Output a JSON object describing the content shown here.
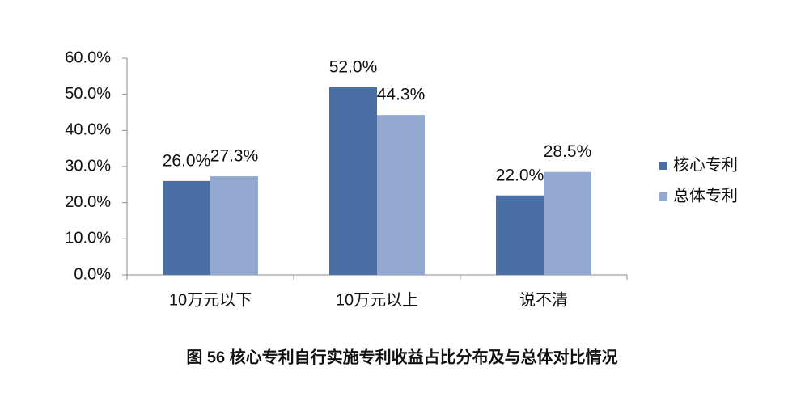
{
  "chart_data": {
    "type": "bar",
    "title": "图 56 核心专利自行实施专利收益占比分布及与总体对比情况",
    "categories": [
      "10万元以下",
      "10万元以上",
      "说不清"
    ],
    "series": [
      {
        "name": "核心专利",
        "color": "#4a6fa5",
        "values": [
          26.0,
          52.0,
          22.0
        ],
        "value_labels": [
          "26.0%",
          "52.0%",
          "22.0%"
        ]
      },
      {
        "name": "总体专利",
        "color": "#94a9d2",
        "values": [
          27.3,
          44.3,
          28.5
        ],
        "value_labels": [
          "27.3%",
          "44.3%",
          "28.5%"
        ]
      }
    ],
    "ylim": [
      0,
      60
    ],
    "yticks": [
      {
        "value": 0,
        "label": "0.0%"
      },
      {
        "value": 10,
        "label": "10.0%"
      },
      {
        "value": 20,
        "label": "20.0%"
      },
      {
        "value": 30,
        "label": "30.0%"
      },
      {
        "value": 40,
        "label": "40.0%"
      },
      {
        "value": 50,
        "label": "50.0%"
      },
      {
        "value": 60,
        "label": "60.0%"
      }
    ],
    "legend": "right"
  }
}
